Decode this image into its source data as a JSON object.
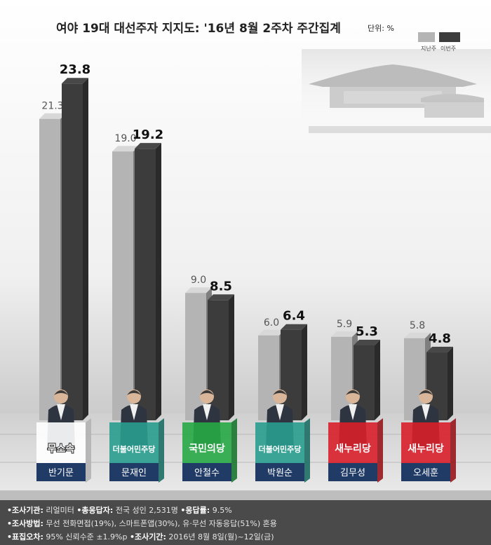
{
  "chart_data": {
    "type": "bar",
    "title": "여야 19대 대선주자 지지도: '16년 8월 2주차 주간집계",
    "unit_label": "단위: %",
    "legend": [
      "지난주",
      "이번주"
    ],
    "categories": [
      "반기문",
      "문재인",
      "안철수",
      "박원순",
      "김무성",
      "오세훈"
    ],
    "parties": [
      "무소속",
      "더불어민주당",
      "국민의당",
      "더불어민주당",
      "새누리당",
      "새누리당"
    ],
    "series": [
      {
        "name": "지난주",
        "values": [
          21.3,
          19.0,
          9.0,
          6.0,
          5.9,
          5.8
        ],
        "color": "#b4b4b4"
      },
      {
        "name": "이번주",
        "values": [
          23.8,
          19.2,
          8.5,
          6.4,
          5.3,
          4.8
        ],
        "color": "#3c3c3c"
      }
    ],
    "ylim": [
      0,
      25
    ],
    "grid": false
  },
  "party_colors": {
    "무소속": "#ffffff",
    "더불어민주당": "#2a9d8f",
    "국민의당": "#27a845",
    "새누리당": "#d81f2a"
  },
  "name_plate_color": "#1f3b66",
  "footer": {
    "lines": [
      [
        {
          "k": "•조사기관:",
          "v": " 리얼미터 "
        },
        {
          "k": "•총응답자:",
          "v": " 전국 성인 2,531명 "
        },
        {
          "k": "•응답률:",
          "v": " 9.5%"
        }
      ],
      [
        {
          "k": "•조사방법:",
          "v": " 무선 전화면접(19%), 스마트폰앱(30%), 유·무선 자동응답(51%) 혼용"
        }
      ],
      [
        {
          "k": "•표집오차:",
          "v": " 95% 신뢰수준 ±1.9%p "
        },
        {
          "k": "•조사기간:",
          "v": " 2016년 8월 8일(월)~12일(금)"
        }
      ]
    ]
  }
}
